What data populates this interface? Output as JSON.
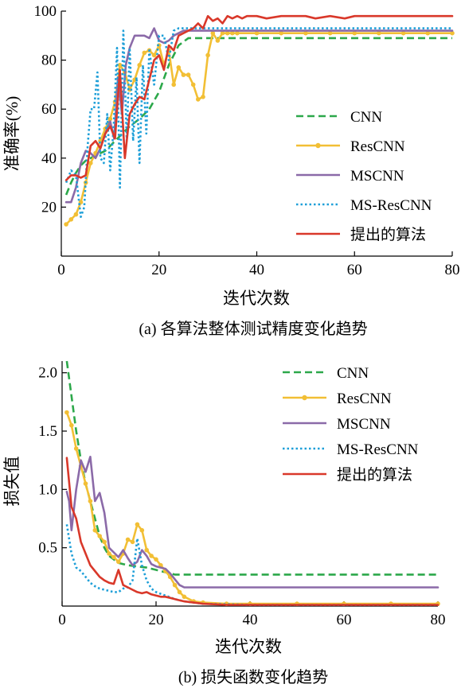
{
  "chart_data": [
    {
      "type": "line",
      "caption": "(a) 各算法整体测试精度变化趋势",
      "xlabel": "迭代次数",
      "ylabel": "准确率(%)",
      "xlim": [
        0,
        80
      ],
      "ylim": [
        0,
        100
      ],
      "xticks": [
        "0",
        "20",
        "40",
        "60",
        "80"
      ],
      "yticks": [
        "20",
        "40",
        "60",
        "80",
        "100"
      ],
      "xtick_values": [
        0,
        20,
        40,
        60,
        80
      ],
      "ytick_values": [
        20,
        40,
        60,
        80,
        100
      ],
      "grid": false,
      "legend_position": "right",
      "series": [
        {
          "name": "CNN",
          "color": "#2ca84a",
          "dash": "9,5",
          "marker": false,
          "x": [
            1,
            2,
            3,
            4,
            5,
            6,
            7,
            8,
            9,
            10,
            12,
            14,
            16,
            18,
            20,
            22,
            24,
            26,
            28,
            30,
            35,
            40,
            50,
            60,
            70,
            80
          ],
          "y": [
            25,
            30,
            34,
            37,
            39,
            40,
            41,
            42,
            43,
            45,
            49,
            53,
            56,
            60,
            67,
            78,
            86,
            89,
            89,
            89,
            89,
            89,
            89,
            89,
            89,
            89
          ]
        },
        {
          "name": "ResCNN",
          "color": "#f2bf35",
          "dash": "",
          "marker": true,
          "x": [
            1,
            2,
            3,
            4,
            5,
            6,
            7,
            8,
            9,
            10,
            11,
            12,
            13,
            14,
            15,
            16,
            17,
            18,
            19,
            20,
            21,
            22,
            23,
            24,
            25,
            26,
            27,
            28,
            29,
            30,
            31,
            32,
            33,
            34,
            35,
            36,
            40,
            45,
            50,
            55,
            60,
            65,
            70,
            75,
            80
          ],
          "y": [
            13,
            15,
            17,
            22,
            30,
            38,
            42,
            47,
            52,
            56,
            63,
            78,
            75,
            68,
            72,
            78,
            83,
            84,
            82,
            86,
            78,
            84,
            70,
            77,
            74,
            74,
            70,
            64,
            65,
            82,
            91,
            88,
            91,
            91,
            91,
            91,
            91,
            91,
            91,
            91,
            91,
            91,
            91,
            91,
            91
          ]
        },
        {
          "name": "MSCNN",
          "color": "#8b6aa8",
          "dash": "",
          "marker": false,
          "x": [
            1,
            2,
            3,
            4,
            5,
            6,
            7,
            8,
            9,
            10,
            10.8,
            11.6,
            12.4,
            13.2,
            14,
            15,
            16,
            17,
            18,
            19,
            20,
            21,
            22,
            23,
            24,
            25,
            26,
            30,
            40,
            50,
            60,
            70,
            80
          ],
          "y": [
            22,
            22,
            28,
            38,
            43,
            42,
            40,
            44,
            50,
            55,
            48,
            73,
            58,
            78,
            85,
            90,
            90,
            90,
            89,
            93,
            88,
            87,
            88,
            90,
            91,
            92,
            92,
            92,
            92,
            92,
            92,
            92,
            92
          ]
        },
        {
          "name": "MS-ResCNN",
          "color": "#1e9fd8",
          "dash": "2.5,3",
          "marker": false,
          "x": [
            1,
            2,
            3,
            4,
            4.7,
            5.4,
            6,
            6.7,
            7.4,
            8,
            8.7,
            9.4,
            10,
            10.7,
            11.4,
            12,
            12.7,
            13.4,
            14,
            14.7,
            15.4,
            16,
            16.7,
            17.4,
            18,
            19,
            20,
            21,
            22,
            23,
            24,
            26,
            30,
            40,
            50,
            60,
            70,
            80
          ],
          "y": [
            30,
            35,
            33,
            16,
            20,
            45,
            60,
            60,
            75,
            40,
            38,
            58,
            35,
            52,
            85,
            28,
            92,
            47,
            85,
            47,
            73,
            38,
            78,
            50,
            84,
            70,
            90,
            90,
            80,
            92,
            93,
            93,
            93,
            93,
            93,
            93,
            93,
            93
          ]
        },
        {
          "name": "提出的算法",
          "color": "#d9382a",
          "dash": "",
          "marker": false,
          "x": [
            1,
            2,
            3,
            4,
            5,
            6,
            7,
            8,
            9,
            10,
            11,
            12,
            13,
            14,
            15,
            16,
            17,
            18,
            19,
            20,
            21,
            22,
            23,
            24,
            25,
            26,
            27,
            28,
            29,
            30,
            31,
            32,
            33,
            34,
            35,
            36,
            37,
            38,
            40,
            42,
            45,
            50,
            52,
            55,
            58,
            60,
            62,
            65,
            70,
            75,
            80
          ],
          "y": [
            31,
            33,
            33,
            32,
            33,
            45,
            47,
            44,
            50,
            53,
            48,
            76,
            40,
            58,
            62,
            65,
            64,
            72,
            80,
            82,
            76,
            86,
            84,
            90,
            91,
            92,
            93,
            95,
            93,
            98,
            96,
            97,
            95,
            98,
            97,
            98,
            97,
            98,
            98,
            97,
            98,
            98,
            97,
            98,
            97,
            98,
            98,
            98,
            98,
            98,
            98
          ]
        }
      ]
    },
    {
      "type": "line",
      "caption": "(b) 损失函数变化趋势",
      "xlabel": "迭代次数",
      "ylabel": "损失值",
      "xlim": [
        0,
        80
      ],
      "ylim": [
        0,
        2.1
      ],
      "xticks": [
        "0",
        "20",
        "40",
        "60",
        "80"
      ],
      "yticks": [
        "0.5",
        "1.0",
        "1.5",
        "2.0"
      ],
      "xtick_values": [
        0,
        20,
        40,
        60,
        80
      ],
      "ytick_values": [
        0.5,
        1.0,
        1.5,
        2.0
      ],
      "grid": false,
      "legend_position": "top-right",
      "series": [
        {
          "name": "CNN",
          "color": "#2ca84a",
          "dash": "9,5",
          "marker": false,
          "x": [
            1,
            2,
            3,
            4,
            5,
            6,
            7,
            8,
            9,
            10,
            11,
            12,
            13,
            14,
            16,
            18,
            20,
            22,
            24,
            25,
            30,
            40,
            50,
            60,
            70,
            80
          ],
          "y": [
            2.1,
            1.8,
            1.5,
            1.25,
            1.05,
            0.9,
            0.75,
            0.6,
            0.5,
            0.43,
            0.4,
            0.37,
            0.36,
            0.35,
            0.34,
            0.33,
            0.31,
            0.29,
            0.27,
            0.27,
            0.27,
            0.27,
            0.27,
            0.27,
            0.27,
            0.27
          ]
        },
        {
          "name": "ResCNN",
          "color": "#f2bf35",
          "dash": "",
          "marker": true,
          "x": [
            1,
            2,
            3,
            4,
            5,
            6,
            7,
            8,
            9,
            10,
            11,
            12,
            13,
            14,
            15,
            16,
            17,
            18,
            19,
            20,
            21,
            22,
            23,
            24,
            25,
            26,
            28,
            30,
            35,
            40,
            50,
            60,
            70,
            80
          ],
          "y": [
            1.66,
            1.55,
            1.35,
            1.2,
            1.05,
            0.9,
            0.65,
            0.6,
            0.55,
            0.45,
            0.42,
            0.38,
            0.45,
            0.57,
            0.55,
            0.7,
            0.65,
            0.48,
            0.43,
            0.4,
            0.35,
            0.3,
            0.25,
            0.18,
            0.12,
            0.08,
            0.04,
            0.03,
            0.02,
            0.02,
            0.02,
            0.02,
            0.02,
            0.02
          ]
        },
        {
          "name": "MSCNN",
          "color": "#8b6aa8",
          "dash": "",
          "marker": false,
          "x": [
            1,
            1.5,
            2,
            3,
            4,
            5,
            6,
            7,
            8,
            9,
            10,
            11,
            12,
            13,
            14,
            15,
            16,
            17,
            18,
            19,
            20,
            21,
            22,
            23,
            24,
            25,
            26,
            30,
            40,
            50,
            60,
            70,
            80
          ],
          "y": [
            0.98,
            0.9,
            0.65,
            1.0,
            1.25,
            1.15,
            1.28,
            0.9,
            0.97,
            0.8,
            0.5,
            0.46,
            0.42,
            0.48,
            0.41,
            0.35,
            0.38,
            0.48,
            0.43,
            0.36,
            0.34,
            0.33,
            0.32,
            0.28,
            0.23,
            0.18,
            0.16,
            0.16,
            0.16,
            0.16,
            0.16,
            0.16,
            0.16
          ]
        },
        {
          "name": "MS-ResCNN",
          "color": "#1e9fd8",
          "dash": "2.5,3",
          "marker": false,
          "x": [
            1,
            2,
            3,
            4,
            5,
            6,
            7,
            8,
            9,
            10,
            11,
            12,
            13,
            14,
            15,
            16,
            17,
            18,
            19,
            20,
            22,
            24,
            26,
            28,
            30,
            40,
            50,
            60,
            70,
            80
          ],
          "y": [
            0.7,
            0.45,
            0.33,
            0.3,
            0.25,
            0.2,
            0.17,
            0.15,
            0.14,
            0.13,
            0.12,
            0.12,
            0.15,
            0.16,
            0.22,
            0.58,
            0.35,
            0.22,
            0.15,
            0.12,
            0.09,
            0.06,
            0.04,
            0.03,
            0.02,
            0.01,
            0.01,
            0.01,
            0.01,
            0.01
          ]
        },
        {
          "name": "提出的算法",
          "color": "#d9382a",
          "dash": "",
          "marker": false,
          "x": [
            1,
            2,
            3,
            4,
            5,
            6,
            7,
            8,
            9,
            10,
            11,
            12,
            13,
            14,
            15,
            16,
            17,
            18,
            19,
            20,
            21,
            22,
            23,
            24,
            25,
            26,
            28,
            30,
            35,
            40,
            50,
            60,
            70,
            80
          ],
          "y": [
            1.27,
            0.85,
            0.75,
            0.55,
            0.45,
            0.35,
            0.3,
            0.25,
            0.22,
            0.2,
            0.19,
            0.31,
            0.18,
            0.16,
            0.14,
            0.12,
            0.11,
            0.12,
            0.1,
            0.09,
            0.08,
            0.08,
            0.07,
            0.06,
            0.05,
            0.04,
            0.03,
            0.02,
            0.01,
            0.01,
            0.01,
            0.01,
            0.01,
            0.01
          ]
        }
      ]
    }
  ]
}
